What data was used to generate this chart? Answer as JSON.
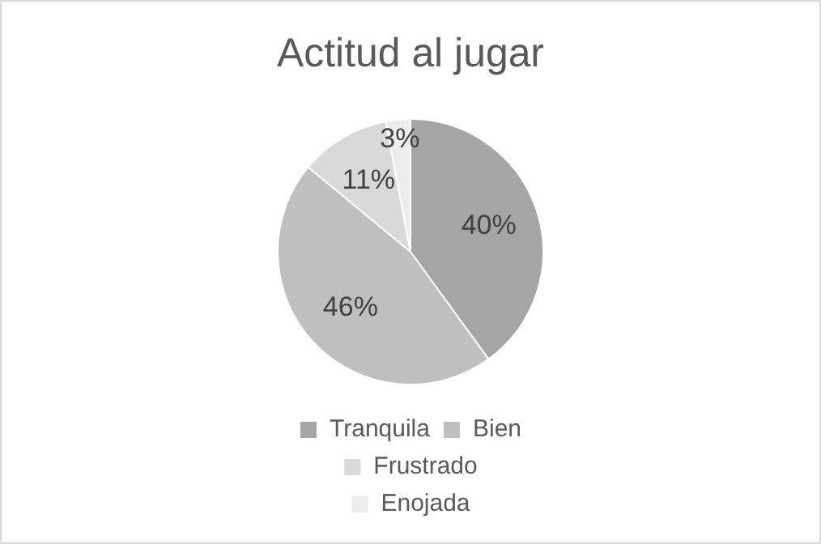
{
  "chart_data": {
    "type": "pie",
    "title": "Actitud al jugar",
    "categories": [
      "Tranquila",
      "Bien",
      "Frustrado",
      "Enojada"
    ],
    "values": [
      40,
      46,
      11,
      3
    ],
    "colors": [
      "#a5a5a5",
      "#bfbfbf",
      "#d9d9d9",
      "#ededed"
    ],
    "value_labels": [
      "40%",
      "46%",
      "11%",
      "3%"
    ],
    "legend": "bottom"
  }
}
